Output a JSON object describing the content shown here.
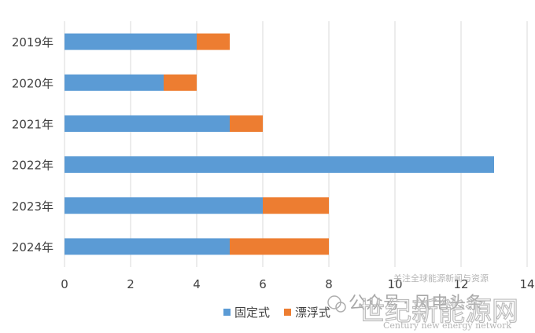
{
  "chart_data": {
    "type": "bar",
    "orientation": "horizontal",
    "stacked": true,
    "categories": [
      "2019年",
      "2020年",
      "2021年",
      "2022年",
      "2023年",
      "2024年"
    ],
    "series": [
      {
        "name": "固定式",
        "values": [
          4,
          3,
          5,
          13,
          6,
          5
        ],
        "color": "#5b9bd5"
      },
      {
        "name": "漂浮式",
        "values": [
          1,
          1,
          1,
          0,
          2,
          3
        ],
        "color": "#ed7d31"
      }
    ],
    "xlim": [
      0,
      14
    ],
    "xticks": [
      0,
      2,
      4,
      6,
      8,
      10,
      12,
      14
    ],
    "grid": "vertical",
    "legend_position": "bottom-center"
  },
  "watermark": {
    "account_prefix": "公众号",
    "account_name": "· 风电头条",
    "site_name": "世纪新能源网",
    "site_name_en": "Century new energy network",
    "tagline": "关注全球能源新闻与资源"
  }
}
